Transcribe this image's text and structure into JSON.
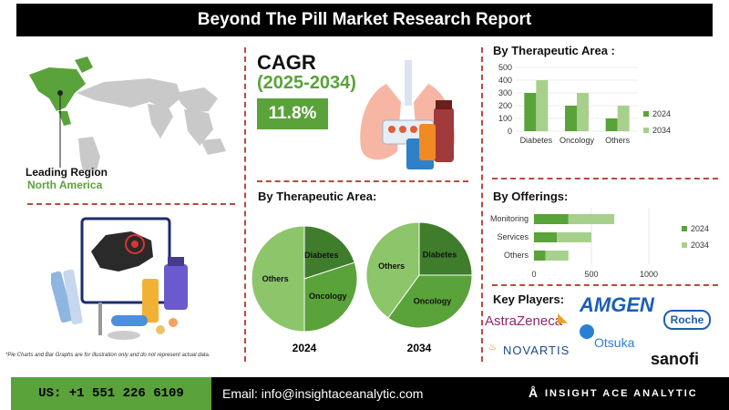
{
  "header": {
    "title": "Beyond The Pill Market Research Report"
  },
  "region": {
    "label": "Leading Region",
    "value": "North America"
  },
  "cagr": {
    "title": "CAGR",
    "years": "(2025-2034)",
    "value": "11.8%"
  },
  "note": "*Pie Charts and Bar Graphs are for illustration only and do not represent actual data.",
  "key_players": {
    "title": "Key Players:",
    "logos": [
      "AstraZeneca",
      "AMGEN",
      "Roche",
      "NOVARTIS",
      "Otsuka",
      "sanofi"
    ]
  },
  "footer": {
    "phone": "US: +1 551 226 6109",
    "email": "Email: info@insightaceanalytic.com",
    "brand": "INSIGHT ACE ANALYTIC"
  },
  "colors": {
    "dark_green": "#5aa23a",
    "light_green": "#a8d08d",
    "pie_dark": "#3f7d2c",
    "pie_mid": "#5aa23a",
    "pie_light": "#8cc56a",
    "divider": "#b84a3e"
  },
  "chart_data": [
    {
      "type": "bar",
      "title": "By Therapeutic Area :",
      "categories": [
        "Diabetes",
        "Oncology",
        "Others"
      ],
      "series": [
        {
          "name": "2024",
          "values": [
            300,
            200,
            100
          ]
        },
        {
          "name": "2034",
          "values": [
            400,
            300,
            200
          ]
        }
      ],
      "ylim": [
        0,
        500
      ],
      "yticks": [
        0,
        100,
        200,
        300,
        400,
        500
      ],
      "legend": "right"
    },
    {
      "type": "bar",
      "orientation": "horizontal",
      "title": "By Offerings:",
      "categories": [
        "Monitoring",
        "Services",
        "Others"
      ],
      "series": [
        {
          "name": "2024",
          "values": [
            300,
            200,
            100
          ]
        },
        {
          "name": "2034",
          "values": [
            400,
            300,
            200
          ]
        }
      ],
      "xlim": [
        0,
        1000
      ],
      "xticks": [
        0,
        500,
        1000
      ],
      "legend": "right",
      "stacked": true
    },
    {
      "type": "pie",
      "title": "By Therapeutic Area:",
      "charts": [
        {
          "label": "2024",
          "slices": [
            {
              "name": "Diabetes",
              "value": 20
            },
            {
              "name": "Oncology",
              "value": 30
            },
            {
              "name": "Others",
              "value": 50
            }
          ]
        },
        {
          "label": "2034",
          "slices": [
            {
              "name": "Diabetes",
              "value": 25
            },
            {
              "name": "Oncology",
              "value": 35
            },
            {
              "name": "Others",
              "value": 40
            }
          ]
        }
      ]
    }
  ]
}
